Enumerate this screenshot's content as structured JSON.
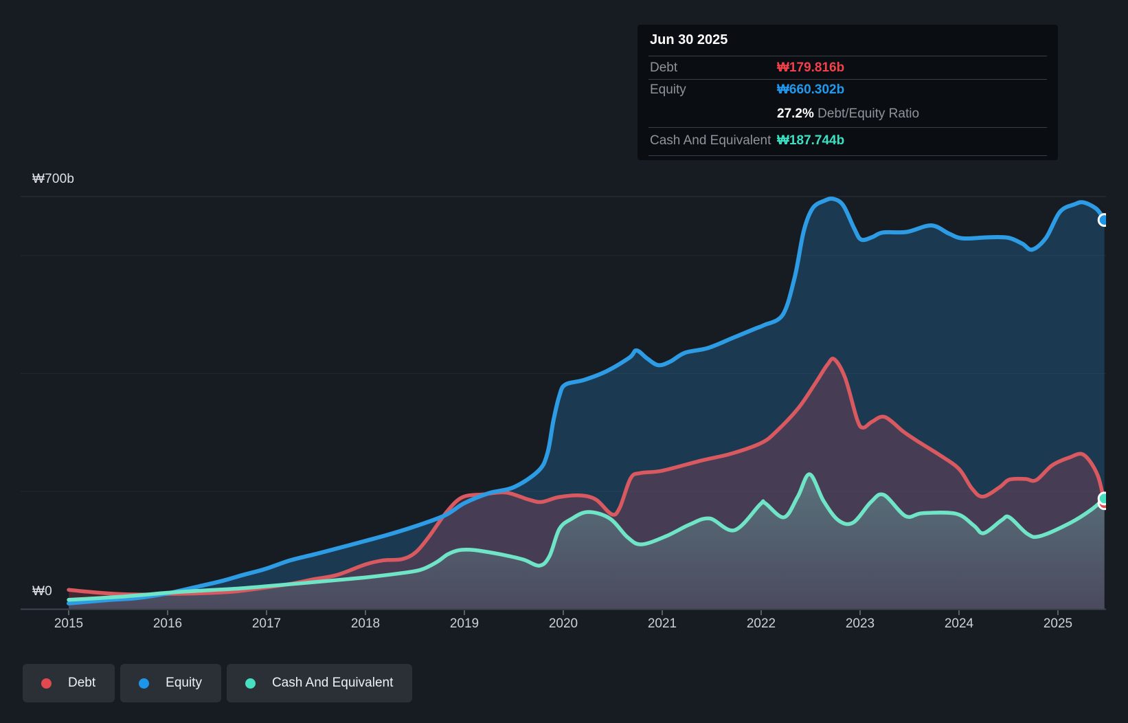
{
  "tooltip": {
    "date": "Jun 30 2025",
    "debt_label": "Debt",
    "debt_value": "₩179.816b",
    "equity_label": "Equity",
    "equity_value": "₩660.302b",
    "ratio_value": "27.2%",
    "ratio_label": " Debt/Equity Ratio",
    "cash_label": "Cash And Equivalent",
    "cash_value": "₩187.744b"
  },
  "y_axis": {
    "top_label": "₩700b",
    "zero_label": "₩0"
  },
  "x_axis": {
    "years": [
      "2015",
      "2016",
      "2017",
      "2018",
      "2019",
      "2020",
      "2021",
      "2022",
      "2023",
      "2024",
      "2025"
    ]
  },
  "legend": {
    "items": [
      {
        "label": "Debt",
        "color": "#e2484f"
      },
      {
        "label": "Equity",
        "color": "#1d96e9"
      },
      {
        "label": "Cash And Equivalent",
        "color": "#47dfc1"
      }
    ]
  },
  "colors": {
    "debt_line": "#d95960",
    "equity_line": "#2d9ce5",
    "cash_line": "#6fe4c6",
    "debt_fill": "rgba(198,70,95,0.25)",
    "equity_fill": "rgba(36,118,177,0.33)",
    "cash_fill_top": "rgba(130,228,208,0.32)",
    "cash_fill_bottom": "rgba(130,228,208,0.08)",
    "grid": "rgba(255,255,255,0.055)",
    "grid_top": "rgba(255,255,255,0.10)",
    "axis": "#3e444c",
    "tick": "#5a6069",
    "marker_ring": "#ffffff"
  },
  "chart_data": {
    "type": "area",
    "title": "Debt to Equity history",
    "x_unit": "year",
    "x_range": [
      2015,
      2025.5
    ],
    "y_range": [
      0,
      700
    ],
    "y_gridline_values": [
      700,
      600,
      400,
      200,
      0
    ],
    "y_label_unit": "₩ billions",
    "legend_position": "bottom-left",
    "series": [
      {
        "name": "Equity",
        "end_label": "₩660.302b",
        "points": [
          [
            2015.0,
            10
          ],
          [
            2015.42,
            16
          ],
          [
            2015.69,
            19
          ],
          [
            2016.0,
            27
          ],
          [
            2016.32,
            39
          ],
          [
            2016.55,
            48
          ],
          [
            2016.76,
            58
          ],
          [
            2017.0,
            69
          ],
          [
            2017.24,
            83
          ],
          [
            2017.48,
            93
          ],
          [
            2017.71,
            103
          ],
          [
            2018.0,
            116
          ],
          [
            2018.22,
            126
          ],
          [
            2018.49,
            140
          ],
          [
            2018.8,
            159
          ],
          [
            2019.0,
            180
          ],
          [
            2019.25,
            197
          ],
          [
            2019.5,
            207
          ],
          [
            2019.75,
            235
          ],
          [
            2019.84,
            265
          ],
          [
            2019.9,
            320
          ],
          [
            2019.96,
            362
          ],
          [
            2020.02,
            381
          ],
          [
            2020.21,
            389
          ],
          [
            2020.44,
            404
          ],
          [
            2020.67,
            427
          ],
          [
            2020.74,
            439
          ],
          [
            2020.85,
            425
          ],
          [
            2020.96,
            414
          ],
          [
            2021.08,
            420
          ],
          [
            2021.23,
            435
          ],
          [
            2021.46,
            443
          ],
          [
            2021.71,
            460
          ],
          [
            2021.94,
            476
          ],
          [
            2022.03,
            482
          ],
          [
            2022.22,
            500
          ],
          [
            2022.34,
            564
          ],
          [
            2022.43,
            641
          ],
          [
            2022.52,
            680
          ],
          [
            2022.64,
            693
          ],
          [
            2022.73,
            696
          ],
          [
            2022.83,
            685
          ],
          [
            2022.94,
            646
          ],
          [
            2023.01,
            627
          ],
          [
            2023.12,
            631
          ],
          [
            2023.23,
            639
          ],
          [
            2023.47,
            640
          ],
          [
            2023.72,
            651
          ],
          [
            2023.9,
            637
          ],
          [
            2024.04,
            629
          ],
          [
            2024.31,
            631
          ],
          [
            2024.5,
            630
          ],
          [
            2024.64,
            620
          ],
          [
            2024.74,
            610
          ],
          [
            2024.88,
            630
          ],
          [
            2025.02,
            674
          ],
          [
            2025.17,
            687
          ],
          [
            2025.26,
            690
          ],
          [
            2025.39,
            679
          ],
          [
            2025.47,
            660.302
          ]
        ]
      },
      {
        "name": "Debt",
        "end_label": "₩179.816b",
        "points": [
          [
            2015.0,
            33
          ],
          [
            2015.24,
            29
          ],
          [
            2015.49,
            26
          ],
          [
            2015.73,
            25
          ],
          [
            2016.0,
            26
          ],
          [
            2016.32,
            27
          ],
          [
            2016.67,
            30
          ],
          [
            2017.0,
            37
          ],
          [
            2017.24,
            43
          ],
          [
            2017.48,
            51
          ],
          [
            2017.71,
            58
          ],
          [
            2018.0,
            76
          ],
          [
            2018.18,
            83
          ],
          [
            2018.37,
            85
          ],
          [
            2018.51,
            97
          ],
          [
            2018.65,
            125
          ],
          [
            2018.82,
            165
          ],
          [
            2018.98,
            190
          ],
          [
            2019.2,
            195
          ],
          [
            2019.42,
            198
          ],
          [
            2019.65,
            186
          ],
          [
            2019.78,
            182
          ],
          [
            2019.95,
            190
          ],
          [
            2020.17,
            193
          ],
          [
            2020.33,
            186
          ],
          [
            2020.49,
            161
          ],
          [
            2020.57,
            172
          ],
          [
            2020.68,
            222
          ],
          [
            2020.78,
            231
          ],
          [
            2021.0,
            235
          ],
          [
            2021.39,
            252
          ],
          [
            2021.7,
            264
          ],
          [
            2022.0,
            282
          ],
          [
            2022.15,
            301
          ],
          [
            2022.38,
            342
          ],
          [
            2022.55,
            384
          ],
          [
            2022.67,
            415
          ],
          [
            2022.74,
            424
          ],
          [
            2022.85,
            392
          ],
          [
            2022.97,
            322
          ],
          [
            2023.03,
            308
          ],
          [
            2023.12,
            318
          ],
          [
            2023.25,
            326
          ],
          [
            2023.44,
            301
          ],
          [
            2023.6,
            283
          ],
          [
            2023.81,
            261
          ],
          [
            2024.0,
            238
          ],
          [
            2024.13,
            205
          ],
          [
            2024.24,
            191
          ],
          [
            2024.41,
            207
          ],
          [
            2024.51,
            220
          ],
          [
            2024.67,
            221
          ],
          [
            2024.78,
            219
          ],
          [
            2024.94,
            244
          ],
          [
            2025.11,
            257
          ],
          [
            2025.26,
            262
          ],
          [
            2025.4,
            228
          ],
          [
            2025.47,
            179.816
          ]
        ]
      },
      {
        "name": "Cash And Equivalent",
        "end_label": "₩187.744b",
        "points": [
          [
            2015.0,
            16
          ],
          [
            2015.42,
            20
          ],
          [
            2015.73,
            24
          ],
          [
            2016.0,
            28
          ],
          [
            2016.39,
            32
          ],
          [
            2016.7,
            35
          ],
          [
            2017.0,
            39
          ],
          [
            2017.48,
            46
          ],
          [
            2018.0,
            54
          ],
          [
            2018.35,
            61
          ],
          [
            2018.56,
            67
          ],
          [
            2018.72,
            80
          ],
          [
            2018.83,
            93
          ],
          [
            2018.94,
            100
          ],
          [
            2019.06,
            101
          ],
          [
            2019.2,
            98
          ],
          [
            2019.4,
            92
          ],
          [
            2019.6,
            84
          ],
          [
            2019.76,
            74
          ],
          [
            2019.86,
            90
          ],
          [
            2019.96,
            136
          ],
          [
            2020.08,
            153
          ],
          [
            2020.25,
            165
          ],
          [
            2020.47,
            154
          ],
          [
            2020.65,
            122
          ],
          [
            2020.79,
            110
          ],
          [
            2021.04,
            124
          ],
          [
            2021.28,
            144
          ],
          [
            2021.48,
            154
          ],
          [
            2021.73,
            134
          ],
          [
            2021.99,
            178
          ],
          [
            2022.04,
            180
          ],
          [
            2022.23,
            156
          ],
          [
            2022.37,
            191
          ],
          [
            2022.49,
            229
          ],
          [
            2022.63,
            184
          ],
          [
            2022.78,
            151
          ],
          [
            2022.93,
            147
          ],
          [
            2023.11,
            182
          ],
          [
            2023.24,
            194
          ],
          [
            2023.46,
            158
          ],
          [
            2023.63,
            163
          ],
          [
            2023.97,
            162
          ],
          [
            2024.15,
            142
          ],
          [
            2024.25,
            129
          ],
          [
            2024.43,
            151
          ],
          [
            2024.51,
            156
          ],
          [
            2024.69,
            128
          ],
          [
            2024.82,
            124
          ],
          [
            2025.13,
            147
          ],
          [
            2025.33,
            168
          ],
          [
            2025.47,
            187.744
          ]
        ]
      }
    ]
  }
}
